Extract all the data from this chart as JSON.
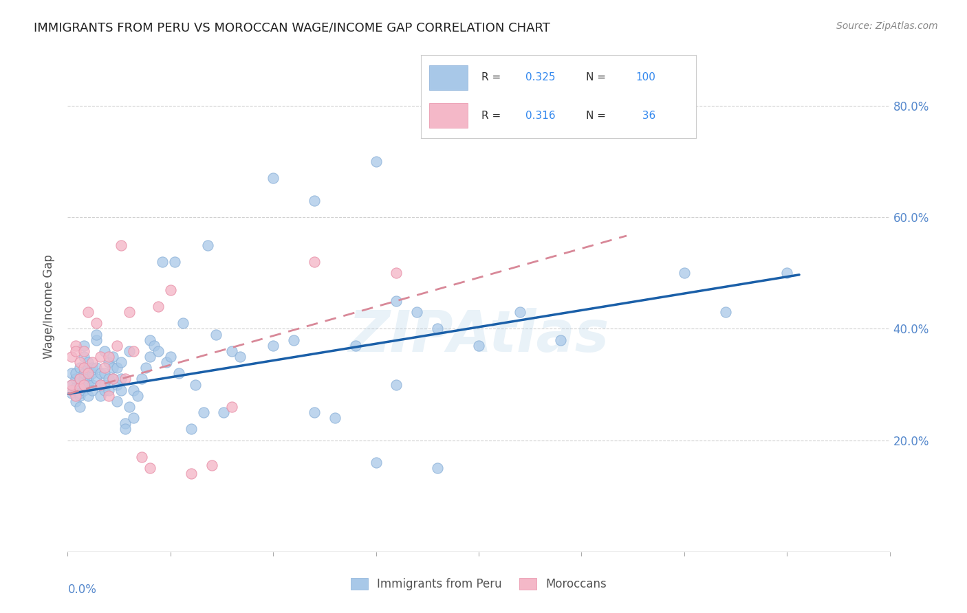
{
  "title": "IMMIGRANTS FROM PERU VS MOROCCAN WAGE/INCOME GAP CORRELATION CHART",
  "source": "Source: ZipAtlas.com",
  "ylabel": "Wage/Income Gap",
  "color_blue": "#a8c8e8",
  "color_pink": "#f4b8c8",
  "color_line_blue": "#1a5fa8",
  "color_line_pink": "#d88898",
  "watermark": "ZIPAtlas",
  "peru_x": [
    0.001,
    0.001,
    0.001,
    0.002,
    0.002,
    0.002,
    0.002,
    0.002,
    0.003,
    0.003,
    0.003,
    0.003,
    0.003,
    0.003,
    0.003,
    0.004,
    0.004,
    0.004,
    0.004,
    0.004,
    0.004,
    0.005,
    0.005,
    0.005,
    0.005,
    0.005,
    0.006,
    0.006,
    0.006,
    0.006,
    0.007,
    0.007,
    0.007,
    0.007,
    0.008,
    0.008,
    0.008,
    0.009,
    0.009,
    0.009,
    0.009,
    0.01,
    0.01,
    0.01,
    0.011,
    0.011,
    0.011,
    0.012,
    0.012,
    0.012,
    0.013,
    0.013,
    0.013,
    0.014,
    0.014,
    0.015,
    0.015,
    0.016,
    0.016,
    0.017,
    0.018,
    0.019,
    0.02,
    0.02,
    0.021,
    0.022,
    0.023,
    0.024,
    0.025,
    0.026,
    0.027,
    0.028,
    0.03,
    0.031,
    0.033,
    0.034,
    0.036,
    0.038,
    0.04,
    0.042,
    0.05,
    0.055,
    0.06,
    0.065,
    0.07,
    0.08,
    0.085,
    0.09,
    0.1,
    0.12,
    0.05,
    0.06,
    0.075,
    0.075,
    0.08,
    0.09,
    0.11,
    0.15,
    0.16,
    0.175
  ],
  "peru_y": [
    0.285,
    0.3,
    0.32,
    0.29,
    0.31,
    0.32,
    0.27,
    0.295,
    0.3,
    0.31,
    0.29,
    0.28,
    0.33,
    0.26,
    0.285,
    0.3,
    0.31,
    0.32,
    0.29,
    0.35,
    0.37,
    0.31,
    0.33,
    0.28,
    0.3,
    0.34,
    0.32,
    0.3,
    0.33,
    0.29,
    0.31,
    0.33,
    0.38,
    0.39,
    0.3,
    0.32,
    0.28,
    0.32,
    0.29,
    0.36,
    0.3,
    0.34,
    0.31,
    0.29,
    0.33,
    0.31,
    0.35,
    0.27,
    0.3,
    0.33,
    0.29,
    0.31,
    0.34,
    0.23,
    0.22,
    0.26,
    0.36,
    0.24,
    0.29,
    0.28,
    0.31,
    0.33,
    0.35,
    0.38,
    0.37,
    0.36,
    0.52,
    0.34,
    0.35,
    0.52,
    0.32,
    0.41,
    0.22,
    0.3,
    0.25,
    0.55,
    0.39,
    0.25,
    0.36,
    0.35,
    0.37,
    0.38,
    0.25,
    0.24,
    0.37,
    0.3,
    0.43,
    0.4,
    0.37,
    0.38,
    0.67,
    0.63,
    0.16,
    0.7,
    0.45,
    0.15,
    0.43,
    0.5,
    0.43,
    0.5
  ],
  "moroccan_x": [
    0.001,
    0.001,
    0.001,
    0.002,
    0.002,
    0.002,
    0.003,
    0.003,
    0.003,
    0.004,
    0.004,
    0.004,
    0.005,
    0.005,
    0.006,
    0.007,
    0.008,
    0.008,
    0.009,
    0.01,
    0.01,
    0.011,
    0.012,
    0.013,
    0.014,
    0.015,
    0.016,
    0.018,
    0.02,
    0.022,
    0.025,
    0.03,
    0.035,
    0.04,
    0.06,
    0.08
  ],
  "moroccan_y": [
    0.29,
    0.35,
    0.3,
    0.28,
    0.37,
    0.36,
    0.295,
    0.34,
    0.31,
    0.33,
    0.36,
    0.3,
    0.43,
    0.32,
    0.34,
    0.41,
    0.3,
    0.35,
    0.33,
    0.35,
    0.28,
    0.31,
    0.37,
    0.55,
    0.31,
    0.43,
    0.36,
    0.17,
    0.15,
    0.44,
    0.47,
    0.14,
    0.155,
    0.26,
    0.52,
    0.5
  ],
  "xlim": [
    0.0,
    0.2
  ],
  "ylim": [
    0.0,
    0.88
  ],
  "blue_trend_x0": 0.0,
  "blue_trend_y0": 0.283,
  "blue_trend_x1": 0.178,
  "blue_trend_y1": 0.497,
  "pink_trend_x0": 0.0,
  "pink_trend_y0": 0.283,
  "pink_trend_x1": 0.136,
  "pink_trend_y1": 0.567,
  "ytick_vals": [
    0.2,
    0.4,
    0.6,
    0.8
  ],
  "ytick_labels": [
    "20.0%",
    "40.0%",
    "60.0%",
    "80.0%"
  ],
  "figsize": [
    14.06,
    8.92
  ],
  "dpi": 100
}
